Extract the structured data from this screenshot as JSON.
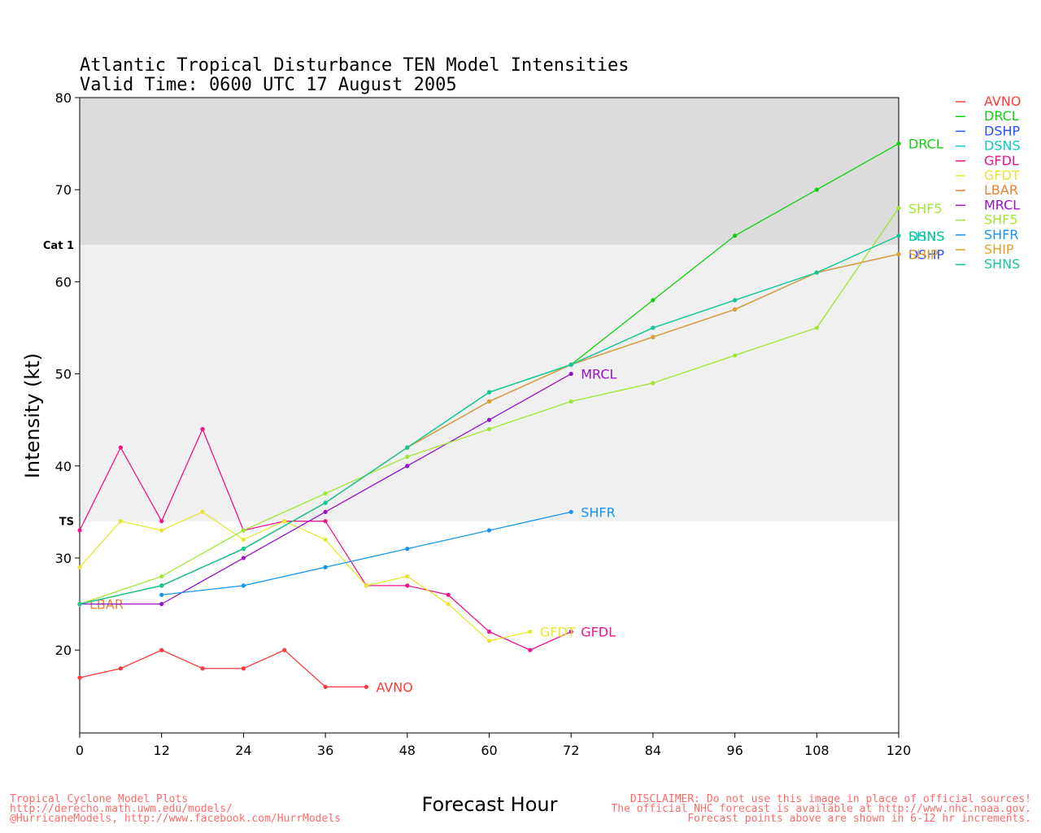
{
  "chart_data": {
    "type": "line",
    "title": "Atlantic Tropical Disturbance TEN Model Intensities",
    "subtitle": "Valid Time: 0600 UTC 17 August 2005",
    "xlabel": "Forecast Hour",
    "ylabel": "Intensity (kt)",
    "xlim": [
      0,
      120
    ],
    "ylim": [
      11,
      80
    ],
    "xticks": [
      0,
      12,
      24,
      36,
      48,
      60,
      72,
      84,
      96,
      108,
      120
    ],
    "yticks": [
      20,
      30,
      40,
      50,
      60,
      70,
      80
    ],
    "bands": [
      {
        "label": "TS",
        "from": 34,
        "to": 64,
        "color": "#f0f0f0"
      },
      {
        "label": "Cat 1",
        "from": 64,
        "to": 80,
        "color": "#dcdcdc"
      }
    ],
    "grid": false,
    "legend_position": "right",
    "series": [
      {
        "name": "AVNO",
        "color": "#ff3c3c",
        "x": [
          0,
          6,
          12,
          18,
          24,
          30,
          36,
          42
        ],
        "y": [
          17,
          18,
          20,
          18,
          18,
          20,
          16,
          16
        ],
        "label": "AVNO"
      },
      {
        "name": "DRCL",
        "color": "#10d010",
        "x": [
          0,
          12,
          24,
          36,
          48,
          60,
          72,
          84,
          96,
          108,
          120
        ],
        "y": [
          25,
          27,
          31,
          36,
          42,
          48,
          51,
          58,
          65,
          70,
          75
        ],
        "label": "DRCL"
      },
      {
        "name": "DSHP",
        "color": "#2850ff",
        "x": [
          0,
          12,
          24,
          36,
          48,
          60,
          72,
          84,
          96,
          108,
          120
        ],
        "y": [
          25,
          27,
          31,
          36,
          42,
          47,
          51,
          54,
          57,
          61,
          63
        ],
        "label": "DSHP"
      },
      {
        "name": "DSNS",
        "color": "#10c8c8",
        "x": [
          0,
          12,
          24,
          36,
          48,
          60,
          72,
          84,
          96,
          108,
          120
        ],
        "y": [
          25,
          27,
          31,
          36,
          42,
          48,
          51,
          55,
          58,
          61,
          65
        ],
        "label": "DSNS"
      },
      {
        "name": "GFDL",
        "color": "#f0148c",
        "x": [
          0,
          6,
          12,
          18,
          24,
          30,
          36,
          42,
          48,
          54,
          60,
          66,
          72
        ],
        "y": [
          33,
          42,
          34,
          44,
          33,
          34,
          34,
          27,
          27,
          26,
          22,
          20,
          22
        ],
        "label": "GFDL"
      },
      {
        "name": "GFDT",
        "color": "#e6e632",
        "x": [
          0,
          6,
          12,
          18,
          24,
          30,
          36,
          42,
          48,
          54,
          60,
          66
        ],
        "y": [
          29,
          34,
          33,
          35,
          32,
          34,
          32,
          27,
          28,
          25,
          21,
          22
        ],
        "label": "GFDT"
      },
      {
        "name": "LBAR",
        "color": "#e68232",
        "x": [
          0
        ],
        "y": [
          25
        ],
        "label": "LBAR"
      },
      {
        "name": "MRCL",
        "color": "#9614c8",
        "x": [
          0,
          12,
          24,
          36,
          48,
          60,
          72
        ],
        "y": [
          25,
          25,
          30,
          35,
          40,
          45,
          50
        ],
        "label": "MRCL"
      },
      {
        "name": "SHF5",
        "color": "#a0e632",
        "x": [
          0,
          12,
          24,
          36,
          48,
          60,
          72,
          84,
          96,
          108,
          120
        ],
        "y": [
          25,
          28,
          33,
          37,
          41,
          44,
          47,
          49,
          52,
          55,
          68
        ],
        "label": "SHF5"
      },
      {
        "name": "SHFR",
        "color": "#1496f0",
        "x": [
          12,
          24,
          36,
          48,
          60,
          72
        ],
        "y": [
          26,
          27,
          29,
          31,
          33,
          35
        ],
        "label": "SHFR"
      },
      {
        "name": "SHIP",
        "color": "#e6a028",
        "x": [
          0,
          12,
          24,
          36,
          48,
          60,
          72,
          84,
          96,
          108,
          120
        ],
        "y": [
          25,
          27,
          31,
          36,
          42,
          47,
          51,
          54,
          57,
          61,
          63
        ],
        "label": "SHIP"
      },
      {
        "name": "SHNS",
        "color": "#14c896",
        "x": [
          0,
          12,
          24,
          36,
          48,
          60,
          72,
          84,
          96,
          108,
          120
        ],
        "y": [
          25,
          27,
          31,
          36,
          42,
          48,
          51,
          55,
          58,
          61,
          65
        ],
        "label": "SHNS"
      }
    ]
  },
  "footer": {
    "left": [
      "Tropical Cyclone Model Plots",
      "http://derecho.math.uwm.edu/models/",
      "@HurricaneModels, http://www.facebook.com/HurrModels"
    ],
    "right": [
      "DISCLAIMER: Do not use this image in place of official sources!",
      "The official NHC forecast is available at http://www.nhc.noaa.gov.",
      "Forecast points above are shown in 6-12 hr increments."
    ]
  }
}
